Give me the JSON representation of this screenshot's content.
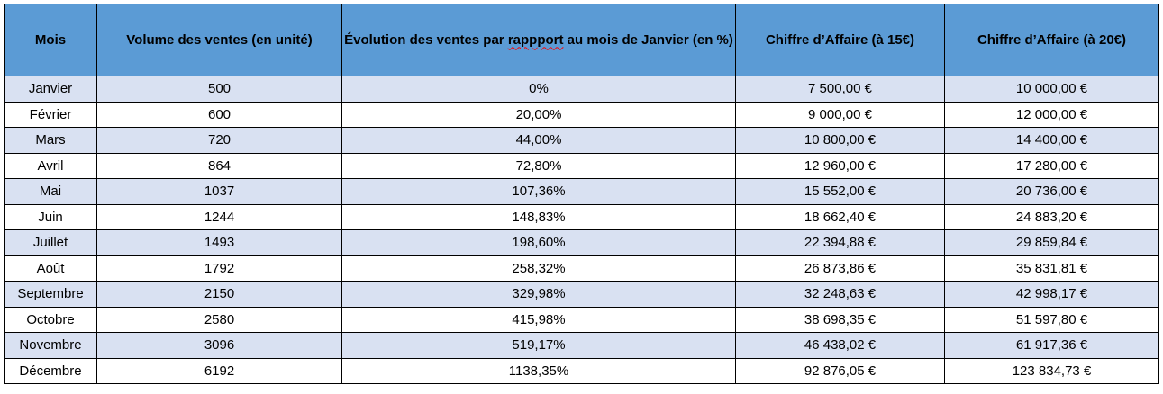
{
  "table": {
    "headers": {
      "mois": "Mois",
      "volume": "Volume des ventes (en unité)",
      "evolution_part1": "Évolution des ventes par ",
      "evolution_misspelled": "rappport",
      "evolution_part2": " au mois de Janvier (en %)",
      "ca15": "Chiffre d’Affaire (à 15€)",
      "ca20": "Chiffre d’Affaire (à 20€)"
    },
    "rows": [
      {
        "mois": "Janvier",
        "volume": "500",
        "evolution": "0%",
        "ca15": "7 500,00 €",
        "ca20": "10 000,00 €"
      },
      {
        "mois": "Février",
        "volume": "600",
        "evolution": "20,00%",
        "ca15": "9 000,00 €",
        "ca20": "12 000,00 €"
      },
      {
        "mois": "Mars",
        "volume": "720",
        "evolution": "44,00%",
        "ca15": "10 800,00 €",
        "ca20": "14 400,00 €"
      },
      {
        "mois": "Avril",
        "volume": "864",
        "evolution": "72,80%",
        "ca15": "12 960,00 €",
        "ca20": "17 280,00 €"
      },
      {
        "mois": "Mai",
        "volume": "1037",
        "evolution": "107,36%",
        "ca15": "15 552,00 €",
        "ca20": "20 736,00 €"
      },
      {
        "mois": "Juin",
        "volume": "1244",
        "evolution": "148,83%",
        "ca15": "18 662,40 €",
        "ca20": "24 883,20 €"
      },
      {
        "mois": "Juillet",
        "volume": "1493",
        "evolution": "198,60%",
        "ca15": "22 394,88 €",
        "ca20": "29 859,84 €"
      },
      {
        "mois": "Août",
        "volume": "1792",
        "evolution": "258,32%",
        "ca15": "26 873,86 €",
        "ca20": "35 831,81 €"
      },
      {
        "mois": "Septembre",
        "volume": "2150",
        "evolution": "329,98%",
        "ca15": "32 248,63 €",
        "ca20": "42 998,17 €"
      },
      {
        "mois": "Octobre",
        "volume": "2580",
        "evolution": "415,98%",
        "ca15": "38 698,35 €",
        "ca20": "51 597,80 €"
      },
      {
        "mois": "Novembre",
        "volume": "3096",
        "evolution": "519,17%",
        "ca15": "46 438,02 €",
        "ca20": "61 917,36 €"
      },
      {
        "mois": "Décembre",
        "volume": "6192",
        "evolution": "1138,35%",
        "ca15": "92 876,05 €",
        "ca20": "123 834,73 €"
      }
    ],
    "colors": {
      "header_bg": "#5b9bd5",
      "band_bg": "#d9e1f2",
      "border": "#000000",
      "spellcheck": "#ff0000"
    }
  }
}
